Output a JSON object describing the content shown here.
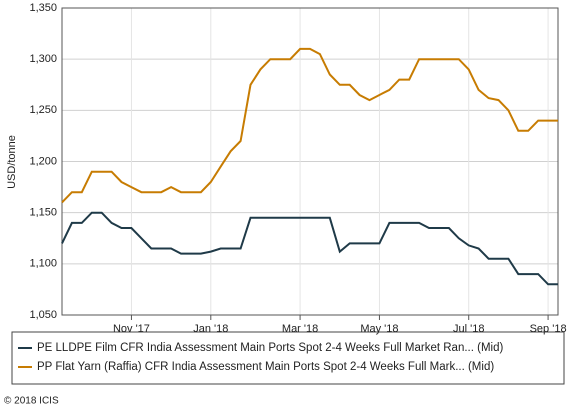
{
  "chart_data": {
    "type": "line",
    "y_label": "USD/tonne",
    "categories": [
      null,
      null,
      null,
      null,
      null,
      null,
      null,
      "Nov '17",
      null,
      null,
      null,
      null,
      null,
      null,
      null,
      "Jan '18",
      null,
      null,
      null,
      null,
      null,
      null,
      null,
      null,
      "Mar '18",
      null,
      null,
      null,
      null,
      null,
      null,
      null,
      "May '18",
      null,
      null,
      null,
      null,
      null,
      null,
      null,
      null,
      "Jul '18",
      null,
      null,
      null,
      null,
      null,
      null,
      null,
      "Sep '18",
      null
    ],
    "series": [
      {
        "name": "PE LLDPE Film CFR India Assessment Main Ports Spot 2-4 Weeks Full Market Ran... (Mid)",
        "color": "#1f3a48",
        "values": [
          1120,
          1140,
          1140,
          1150,
          1150,
          1140,
          1135,
          1135,
          1125,
          1115,
          1115,
          1115,
          1110,
          1110,
          1110,
          1112,
          1115,
          1115,
          1115,
          1145,
          1145,
          1145,
          1145,
          1145,
          1145,
          1145,
          1145,
          1145,
          1112,
          1120,
          1120,
          1120,
          1120,
          1140,
          1140,
          1140,
          1140,
          1135,
          1135,
          1135,
          1125,
          1118,
          1115,
          1105,
          1105,
          1105,
          1090,
          1090,
          1090,
          1080,
          1080
        ]
      },
      {
        "name": "PP Flat Yarn (Raffia) CFR India Assessment Main Ports Spot 2-4 Weeks Full Mark... (Mid)",
        "color": "#c77c02",
        "values": [
          1160,
          1170,
          1170,
          1190,
          1190,
          1190,
          1180,
          1175,
          1170,
          1170,
          1170,
          1175,
          1170,
          1170,
          1170,
          1180,
          1195,
          1210,
          1220,
          1275,
          1290,
          1300,
          1300,
          1300,
          1310,
          1310,
          1305,
          1285,
          1275,
          1275,
          1265,
          1260,
          1265,
          1270,
          1280,
          1280,
          1300,
          1300,
          1300,
          1300,
          1300,
          1290,
          1270,
          1262,
          1260,
          1250,
          1230,
          1230,
          1240,
          1240,
          1240
        ]
      }
    ],
    "ylim": [
      1050,
      1350
    ],
    "yticks": [
      {
        "value": 1050,
        "label": "1,050"
      },
      {
        "value": 1100,
        "label": "1,100"
      },
      {
        "value": 1150,
        "label": "1,150"
      },
      {
        "value": 1200,
        "label": "1,200"
      },
      {
        "value": 1250,
        "label": "1,250"
      },
      {
        "value": 1300,
        "label": "1,300"
      },
      {
        "value": 1350,
        "label": "1,350"
      }
    ],
    "grid": true,
    "legend": "bottom",
    "footer": "© 2018 ICIS"
  }
}
